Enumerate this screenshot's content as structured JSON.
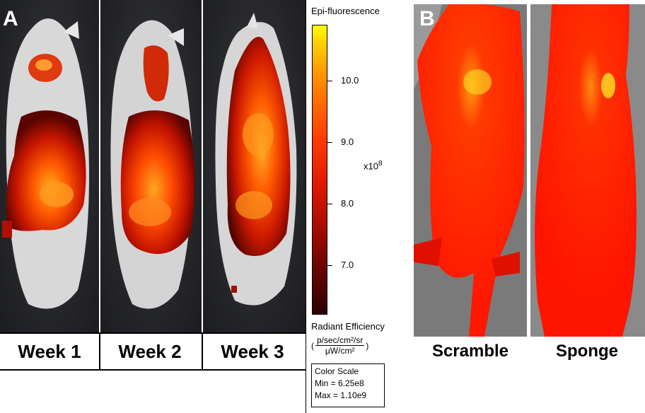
{
  "panel_a": {
    "label": "A",
    "weeks": [
      "Week 1",
      "Week 2",
      "Week 3"
    ]
  },
  "color_scale": {
    "title": "Epi-fluorescence",
    "ticks": [
      "10.0",
      "9.0",
      "8.0",
      "7.0"
    ],
    "multiplier_base": "x10",
    "multiplier_exp": "8",
    "units_title": "Radiant Efficiency",
    "units_open": "(",
    "units_numerator": "p/sec/cm²/sr",
    "units_denominator": "μW/cm²",
    "units_close": ")",
    "box_title": "Color Scale",
    "min": "Min = 6.25e8",
    "max": "Max = 1.10e9",
    "colors": {
      "high": "#ffff00",
      "mid": "#ff3a00",
      "low": "#2c0000"
    }
  },
  "panel_b": {
    "label": "B",
    "conditions": [
      "Scramble",
      "Sponge"
    ]
  }
}
